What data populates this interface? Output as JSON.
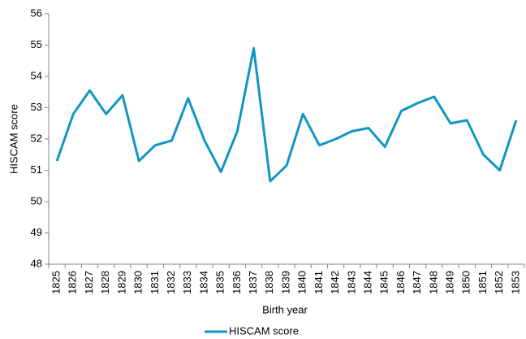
{
  "chart_data": {
    "type": "line",
    "x_label": "Birth year",
    "y_label": "HISCAM score",
    "categories": [
      "1825",
      "1826",
      "1827",
      "1828",
      "1829",
      "1830",
      "1831",
      "1832",
      "1833",
      "1834",
      "1835",
      "1836",
      "1837",
      "1838",
      "1839",
      "1840",
      "1841",
      "1842",
      "1843",
      "1844",
      "1845",
      "1846",
      "1847",
      "1848",
      "1849",
      "1850",
      "1851",
      "1852",
      "1853"
    ],
    "series": [
      {
        "name": "HISCAM score",
        "color": "#1196c4",
        "values": [
          51.3,
          52.8,
          53.55,
          52.8,
          53.4,
          51.3,
          51.8,
          51.95,
          53.3,
          51.95,
          50.95,
          52.25,
          54.9,
          50.65,
          51.15,
          52.8,
          51.8,
          52.0,
          52.25,
          52.35,
          51.75,
          52.9,
          53.15,
          53.35,
          52.5,
          52.6,
          51.5,
          51.0,
          52.6
        ]
      }
    ],
    "ylim": [
      48,
      56
    ],
    "yticks": [
      48,
      49,
      50,
      51,
      52,
      53,
      54,
      55,
      56
    ],
    "grid": false,
    "legend": "bottom"
  }
}
